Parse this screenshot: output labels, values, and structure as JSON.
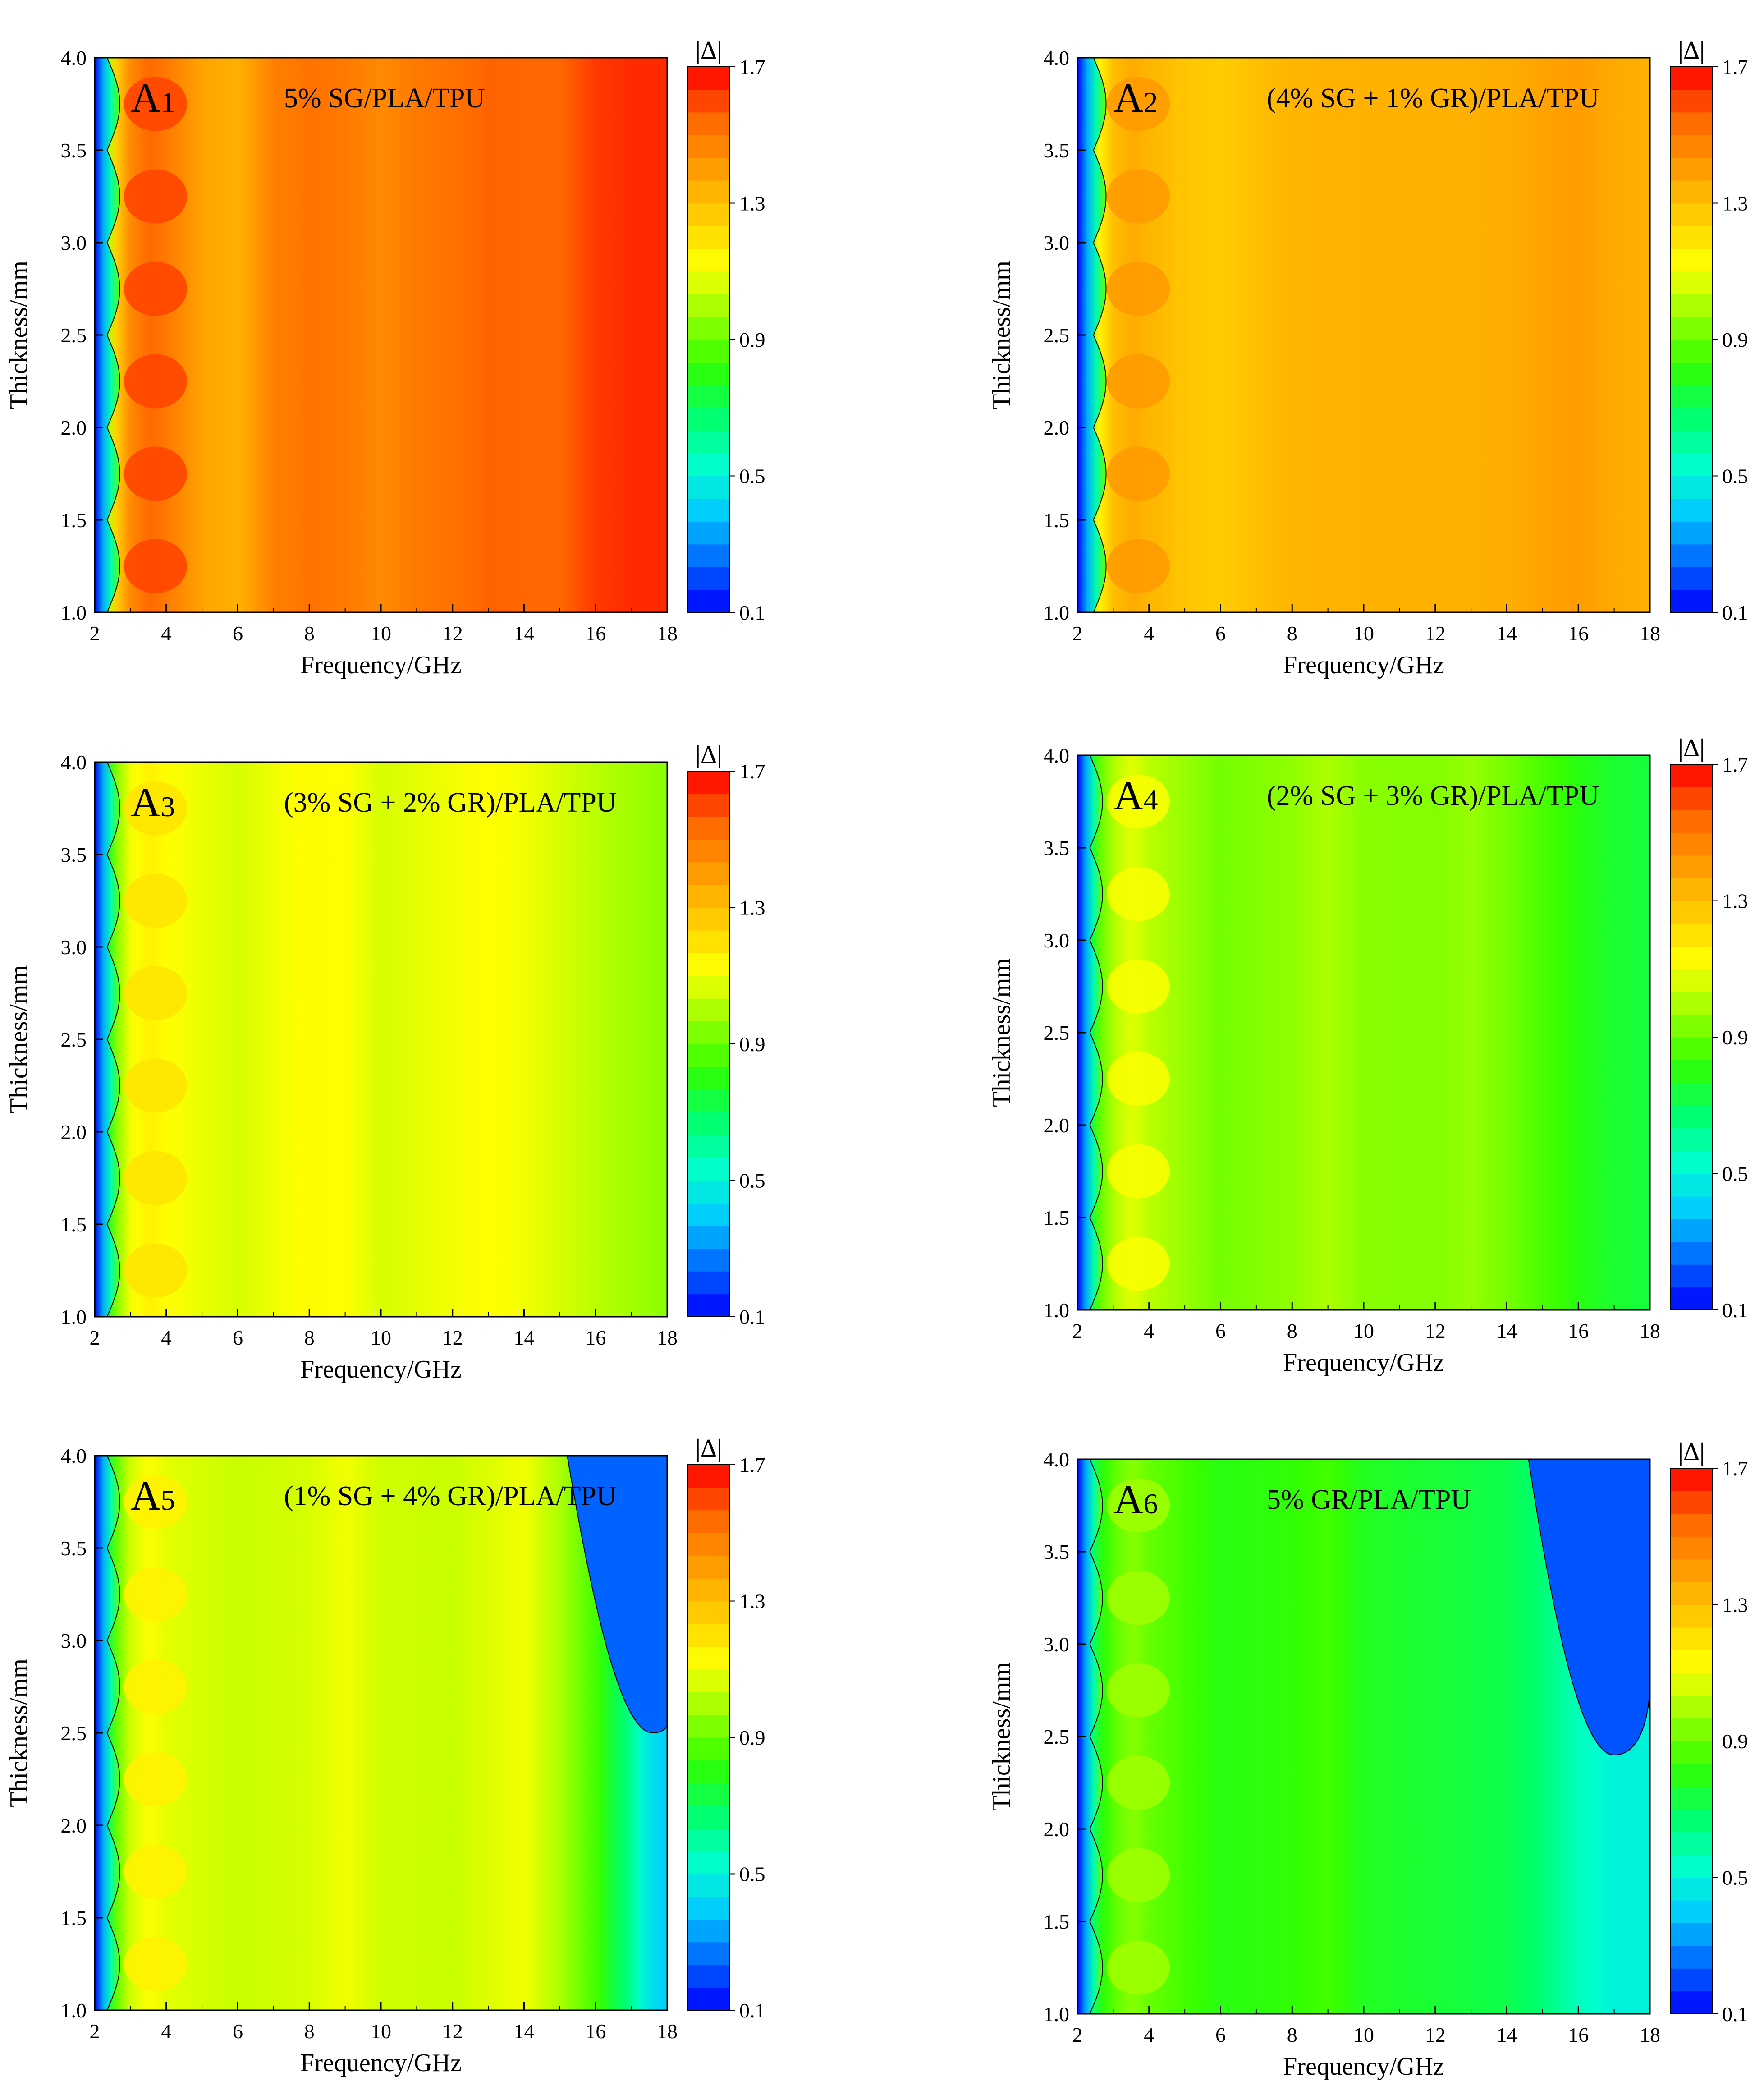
{
  "figure": {
    "colors": {
      "colormap": [
        "#0000ff",
        "#0066ff",
        "#00ccff",
        "#00ffcc",
        "#00ff66",
        "#33ff00",
        "#99ff00",
        "#ffff00",
        "#ffcc00",
        "#ff9900",
        "#ff6600",
        "#ff0000"
      ],
      "contour_line": "#000000",
      "text": "#000000"
    },
    "colorbar": {
      "title": "|Δ|",
      "min": 0.1,
      "max": 1.7,
      "ticks": [
        "0.1",
        "0.5",
        "0.9",
        "1.3",
        "1.7"
      ]
    }
  },
  "chart_data": [
    {
      "type": "heatmap",
      "panel_label": "A1",
      "panel_label_main": "A",
      "panel_label_sub": "1",
      "title": "5% SG/PLA/TPU",
      "xlabel": "Frequency/GHz",
      "ylabel": "Thickness/mm",
      "xlim": [
        2,
        18
      ],
      "ylim": [
        1.0,
        4.0
      ],
      "x_ticks": [
        "2",
        "4",
        "6",
        "8",
        "10",
        "12",
        "14",
        "16",
        "18"
      ],
      "y_ticks": [
        "1.0",
        "1.5",
        "2.0",
        "2.5",
        "3.0",
        "3.5",
        "4.0"
      ],
      "z_label": "|Δ|",
      "profile_freq": [
        2.0,
        2.5,
        3.0,
        3.5,
        4.0,
        5.0,
        6.0,
        7.0,
        8.0,
        9.0,
        10.0,
        11.0,
        12.0,
        13.0,
        14.0,
        15.0,
        16.0,
        17.0,
        18.0
      ],
      "profile_delta": [
        0.3,
        1.2,
        1.45,
        1.55,
        1.5,
        1.38,
        1.34,
        1.48,
        1.52,
        1.5,
        1.45,
        1.5,
        1.52,
        1.56,
        1.55,
        1.55,
        1.62,
        1.64,
        1.64
      ],
      "low_edge_freq": 2.6,
      "oscillation_amp": 0.06,
      "dip_freq": null,
      "dip_depth": 0,
      "dip_thickness_from": 4.0
    },
    {
      "type": "heatmap",
      "panel_label": "A2",
      "panel_label_main": "A",
      "panel_label_sub": "2",
      "title": "(4% SG + 1% GR)/PLA/TPU",
      "xlabel": "Frequency/GHz",
      "ylabel": "Thickness/mm",
      "xlim": [
        2,
        18
      ],
      "ylim": [
        1.0,
        4.0
      ],
      "x_ticks": [
        "2",
        "4",
        "6",
        "8",
        "10",
        "12",
        "14",
        "16",
        "18"
      ],
      "y_ticks": [
        "1.0",
        "1.5",
        "2.0",
        "2.5",
        "3.0",
        "3.5",
        "4.0"
      ],
      "z_label": "|Δ|",
      "profile_freq": [
        2.0,
        2.5,
        3.0,
        3.5,
        4.0,
        5.0,
        6.0,
        7.0,
        8.0,
        10.0,
        12.0,
        14.0,
        15.0,
        16.0,
        17.0,
        18.0
      ],
      "profile_delta": [
        0.3,
        1.1,
        1.3,
        1.36,
        1.33,
        1.28,
        1.26,
        1.3,
        1.33,
        1.34,
        1.34,
        1.35,
        1.38,
        1.4,
        1.36,
        1.34
      ],
      "low_edge_freq": 2.7,
      "oscillation_amp": 0.05,
      "dip_freq": null,
      "dip_depth": 0,
      "dip_thickness_from": 4.0
    },
    {
      "type": "heatmap",
      "panel_label": "A3",
      "panel_label_main": "A",
      "panel_label_sub": "3",
      "title": "(3% SG + 2% GR)/PLA/TPU",
      "xlabel": "Frequency/GHz",
      "ylabel": "Thickness/mm",
      "xlim": [
        2,
        18
      ],
      "ylim": [
        1.0,
        4.0
      ],
      "x_ticks": [
        "2",
        "4",
        "6",
        "8",
        "10",
        "12",
        "14",
        "16",
        "18"
      ],
      "y_ticks": [
        "1.0",
        "1.5",
        "2.0",
        "2.5",
        "3.0",
        "3.5",
        "4.0"
      ],
      "z_label": "|Δ|",
      "profile_freq": [
        2.0,
        2.5,
        3.0,
        3.5,
        4.0,
        6.0,
        8.0,
        9.0,
        10.0,
        12.0,
        13.0,
        14.0,
        16.0,
        18.0
      ],
      "profile_delta": [
        0.2,
        0.9,
        1.1,
        1.16,
        1.12,
        1.06,
        1.13,
        1.12,
        1.06,
        1.1,
        1.12,
        1.1,
        1.02,
        0.95
      ],
      "low_edge_freq": 2.6,
      "oscillation_amp": 0.04,
      "dip_freq": null,
      "dip_depth": 0,
      "dip_thickness_from": 4.0
    },
    {
      "type": "heatmap",
      "panel_label": "A4",
      "panel_label_main": "A",
      "panel_label_sub": "4",
      "title": "(2% SG + 3% GR)/PLA/TPU",
      "xlabel": "Frequency/GHz",
      "ylabel": "Thickness/mm",
      "xlim": [
        2,
        18
      ],
      "ylim": [
        1.0,
        4.0
      ],
      "x_ticks": [
        "2",
        "4",
        "6",
        "8",
        "10",
        "12",
        "14",
        "16",
        "18"
      ],
      "y_ticks": [
        "1.0",
        "1.5",
        "2.0",
        "2.5",
        "3.0",
        "3.5",
        "4.0"
      ],
      "z_label": "|Δ|",
      "profile_freq": [
        2.0,
        2.5,
        3.0,
        3.5,
        4.0,
        6.0,
        8.0,
        9.0,
        10.0,
        12.0,
        13.0,
        14.0,
        15.0,
        16.0,
        17.0,
        18.0
      ],
      "profile_delta": [
        0.2,
        0.85,
        1.0,
        1.08,
        1.02,
        0.92,
        0.96,
        1.0,
        0.95,
        0.94,
        0.97,
        0.92,
        0.86,
        0.8,
        0.76,
        0.74
      ],
      "low_edge_freq": 2.6,
      "oscillation_amp": 0.04,
      "dip_freq": null,
      "dip_depth": 0,
      "dip_thickness_from": 4.0
    },
    {
      "type": "heatmap",
      "panel_label": "A5",
      "panel_label_main": "A",
      "panel_label_sub": "5",
      "title": "(1% SG + 4% GR)/PLA/TPU",
      "xlabel": "Frequency/GHz",
      "ylabel": "Thickness/mm",
      "xlim": [
        2,
        18
      ],
      "ylim": [
        1.0,
        4.0
      ],
      "x_ticks": [
        "2",
        "4",
        "6",
        "8",
        "10",
        "12",
        "14",
        "16",
        "18"
      ],
      "y_ticks": [
        "1.0",
        "1.5",
        "2.0",
        "2.5",
        "3.0",
        "3.5",
        "4.0"
      ],
      "z_label": "|Δ|",
      "profile_freq": [
        2.0,
        2.5,
        3.0,
        3.5,
        4.0,
        6.0,
        8.0,
        9.0,
        10.0,
        12.0,
        14.0,
        15.0,
        16.0,
        17.0,
        17.5,
        18.0
      ],
      "profile_delta": [
        0.2,
        0.85,
        1.05,
        1.12,
        1.08,
        1.04,
        1.06,
        1.1,
        1.05,
        1.04,
        1.1,
        1.0,
        0.85,
        0.62,
        0.45,
        0.4
      ],
      "low_edge_freq": 2.6,
      "oscillation_amp": 0.04,
      "dip_freq": 17.6,
      "dip_depth": 0.2,
      "dip_thickness_from": 2.5
    },
    {
      "type": "heatmap",
      "panel_label": "A6",
      "panel_label_main": "A",
      "panel_label_sub": "6",
      "title": "5% GR/PLA/TPU",
      "xlabel": "Frequency/GHz",
      "ylabel": "Thickness/mm",
      "xlim": [
        2,
        18
      ],
      "ylim": [
        1.0,
        4.0
      ],
      "x_ticks": [
        "2",
        "4",
        "6",
        "8",
        "10",
        "12",
        "14",
        "16",
        "18"
      ],
      "y_ticks": [
        "1.0",
        "1.5",
        "2.0",
        "2.5",
        "3.0",
        "3.5",
        "4.0"
      ],
      "z_label": "|Δ|",
      "profile_freq": [
        2.0,
        2.5,
        3.0,
        3.5,
        4.0,
        6.0,
        8.0,
        9.0,
        10.0,
        12.0,
        14.0,
        15.0,
        16.0,
        17.0,
        18.0
      ],
      "profile_delta": [
        0.2,
        0.75,
        0.88,
        0.95,
        0.9,
        0.8,
        0.82,
        0.85,
        0.78,
        0.75,
        0.72,
        0.66,
        0.56,
        0.5,
        0.5
      ],
      "low_edge_freq": 2.6,
      "oscillation_amp": 0.04,
      "dip_freq": 17.0,
      "dip_depth": 0.28,
      "dip_thickness_from": 2.4
    }
  ]
}
